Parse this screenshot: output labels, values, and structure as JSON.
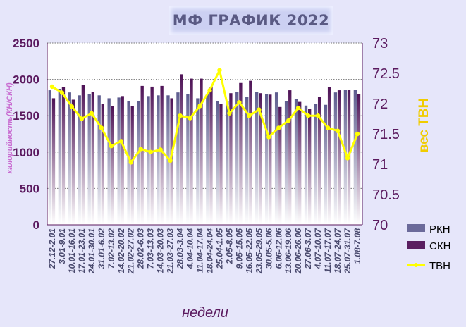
{
  "chart_data": {
    "type": "bar",
    "title": "МФ ГРАФИК 2022",
    "xlabel": "недели",
    "ylabel_left": "калорийность(КН/СКН)",
    "ylabel_right": "вес ТВН",
    "ylim_left": [
      0,
      2500
    ],
    "ylim_right": [
      70,
      73
    ],
    "yticks_left": [
      "0",
      "500",
      "1000",
      "1500",
      "2000",
      "2500"
    ],
    "yticks_right": [
      "70",
      "70.5",
      "71",
      "71.5",
      "72",
      "72.5",
      "73"
    ],
    "categories": [
      "27.12-2.01",
      "3.01-9.01",
      "10.01-16.01",
      "17.01-23.01",
      "24.01-30.01",
      "31.01-6.02",
      "7.02-13.02",
      "14.02-20.02",
      "21.02-27.02",
      "28.02-6.03",
      "7.03-13.03",
      "14.03-20.03",
      "21.03-27.03",
      "28.03-3.04",
      "4.04-10.04",
      "11.04-17.04",
      "18.04-24.04",
      "25.04-1.05",
      "2.05-8.05",
      "9.05-15.05",
      "16.05-22.05",
      "23.05-29.05",
      "30.05-5.06",
      "6.06-12.06",
      "13.06-19.06",
      "20.06-26.06",
      "27.06-3.07",
      "4.07-10.07",
      "11.07-17.07",
      "18.07-24.07",
      "25.07-31.07",
      "1.08-7.08"
    ],
    "x_tick_labels": [
      "27.12-2.01",
      "3.01-9.01",
      "10.01-16.01",
      "17.01-23.01",
      "24.01-30.01",
      "31.01-6.02",
      "7.02-13.02",
      "14.02-20.02",
      "21.02-27.02",
      "28.02-6.03",
      "7.03-13.03",
      "14.03-20.03",
      "21.03-27.03",
      "28.03-3.04",
      "4.04-10.04",
      "11.04-17.04",
      "18.04-24.04",
      "25.04-1.05",
      "2.05-8.05",
      "9.05-15.05",
      "16.05-22.05",
      "23.05-29.05",
      "30.05-5.06",
      "6.06-12.06",
      "13.06-19.06",
      "20.06-26.06",
      "27.06-3.07",
      "4.07-10.07",
      "11.07-17.07",
      "18.07-24.07",
      "25.07-31.07",
      "1.08-7.08"
    ],
    "series": [
      {
        "name": "РКН",
        "axis": "left",
        "type": "bar",
        "color": "#6b6a9a",
        "values": [
          1850,
          1870,
          1820,
          1780,
          1800,
          1780,
          1740,
          1750,
          1700,
          1700,
          1770,
          1780,
          1780,
          1820,
          1800,
          1740,
          1800,
          1700,
          1700,
          1830,
          1760,
          1830,
          1800,
          1820,
          1700,
          1730,
          1640,
          1660,
          1650,
          1820,
          1860,
          1860
        ]
      },
      {
        "name": "СКН",
        "axis": "left",
        "type": "bar",
        "color": "#5a1e60",
        "values": [
          1740,
          1890,
          1720,
          1920,
          1830,
          1660,
          1630,
          1770,
          1630,
          1910,
          1900,
          1910,
          1740,
          2070,
          2010,
          2010,
          1890,
          1660,
          1810,
          1950,
          1980,
          1810,
          1790,
          1620,
          1850,
          1690,
          1590,
          1760,
          1890,
          1850,
          1860,
          1800
        ]
      },
      {
        "name": "ТВН",
        "axis": "right",
        "type": "line",
        "color": "#ffff00",
        "values": [
          72.28,
          72.18,
          71.95,
          71.75,
          71.84,
          71.6,
          71.3,
          71.38,
          71.03,
          71.25,
          71.2,
          71.24,
          71.06,
          71.8,
          71.76,
          71.96,
          72.22,
          72.55,
          71.84,
          72.02,
          71.8,
          71.9,
          71.45,
          71.6,
          71.72,
          71.93,
          71.8,
          71.8,
          71.6,
          71.55,
          71.1,
          71.5
        ]
      }
    ],
    "grid": "horizontal dashed",
    "legend": "right-bottom"
  }
}
